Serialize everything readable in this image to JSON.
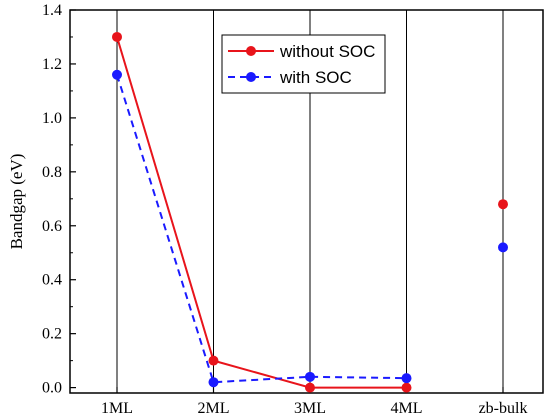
{
  "chart_data": {
    "type": "line",
    "categories": [
      "1ML",
      "2ML",
      "3ML",
      "4ML",
      "zb-bulk"
    ],
    "ylabel": "Bandgap (eV)",
    "xlabel": "",
    "ylim": [
      -0.02,
      1.4
    ],
    "yticks": [
      "0.0",
      "0.2",
      "0.4",
      "0.6",
      "0.8",
      "1.0",
      "1.2",
      "1.4"
    ],
    "grid": "vertical lines at categories",
    "legend_position": "top-right",
    "series": [
      {
        "name": "without SOC",
        "color": "#e8141b",
        "line_style": "solid",
        "values": [
          1.3,
          0.1,
          0.0,
          0.0,
          0.68
        ],
        "connected_points": 4
      },
      {
        "name": "with SOC",
        "color": "#1a1aff",
        "line_style": "dashed",
        "values": [
          1.16,
          0.02,
          0.04,
          0.035,
          0.52
        ],
        "connected_points": 4
      }
    ]
  }
}
